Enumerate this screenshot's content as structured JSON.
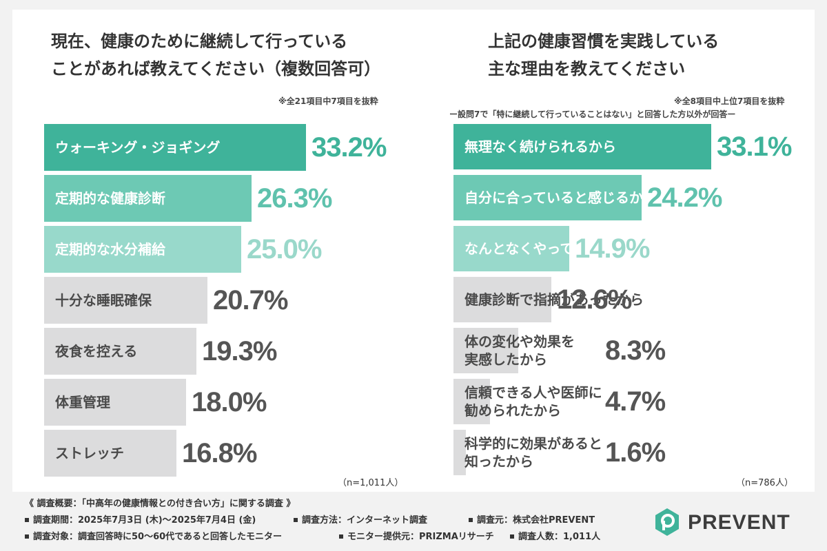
{
  "left_panel": {
    "title_line1": "現在、健康のために継続して行っている",
    "title_line2": "ことがあれば教えてください（複数回答可）",
    "note": "※全21項目中7項目を抜粋",
    "sample": "（n=1,011人）"
  },
  "right_panel": {
    "title_line1": "上記の健康習慣を実践している",
    "title_line2": "主な理由を教えてください",
    "note1": "※全8項目中上位7項目を抜粋",
    "note2": "ー設問7で「特に継続して行っていることはない」と回答した方以外が回答ー",
    "sample": "（n=786人）"
  },
  "footer": {
    "summary": "《 調査概要：「中高年の健康情報との付き合い方」に関する調査 》",
    "period": "調査期間：2025年7月3日 (木)〜2025年7月4日 (金)",
    "method": "調査方法：インターネット調査",
    "source": "調査元：株式会社PREVENT",
    "target": "調査対象：調査回答時に50〜60代であると回答したモニター",
    "monitor": "モニター提供元：PRIZMAリサーチ",
    "count": "調査人数：1,011人"
  },
  "logo": {
    "text": "PREVENT",
    "brand_color": "#3fb39a"
  },
  "colors": {
    "top1": "#3fb39a",
    "top2": "#6dc9b4",
    "top3": "#98d9cb",
    "rest": "#dcdcdd",
    "value_top1": "#3fb39a",
    "value_top2": "#5fc2ad",
    "value_top3": "#9ad8ca",
    "value_rest": "#555555"
  },
  "chart_data": [
    {
      "type": "bar",
      "orientation": "horizontal",
      "title": "現在、健康のために継続して行っていることがあれば教えてください（複数回答可）",
      "categories": [
        "ウォーキング・ジョギング",
        "定期的な健康診断",
        "定期的な水分補給",
        "十分な睡眠確保",
        "夜食を控える",
        "体重管理",
        "ストレッチ"
      ],
      "values": [
        33.2,
        26.3,
        25.0,
        20.7,
        19.3,
        18.0,
        16.8
      ],
      "value_labels": [
        "33.2%",
        "26.3%",
        "25.0%",
        "20.7%",
        "19.3%",
        "18.0%",
        "16.8%"
      ],
      "unit": "%"
    },
    {
      "type": "bar",
      "orientation": "horizontal",
      "title": "上記の健康習慣を実践している主な理由を教えてください",
      "categories": [
        "無理なく続けられるから",
        "自分に合っていると感じるから",
        "なんとなくやっている",
        "健康診断で指摘があったから",
        "体の変化や効果を実感したから",
        "信頼できる人や医師に勧められたから",
        "科学的に効果があると知ったから"
      ],
      "category_lines": [
        [
          "無理なく続けられるから"
        ],
        [
          "自分に合っていると感じるから"
        ],
        [
          "なんとなくやっている"
        ],
        [
          "健康診断で指摘があったから"
        ],
        [
          "体の変化や効果を",
          "実感したから"
        ],
        [
          "信頼できる人や医師に",
          "勧められたから"
        ],
        [
          "科学的に効果があると",
          "知ったから"
        ]
      ],
      "values": [
        33.1,
        24.2,
        14.9,
        12.6,
        8.3,
        4.7,
        1.6
      ],
      "value_labels": [
        "33.1%",
        "24.2%",
        "14.9%",
        "12.6%",
        "8.3%",
        "4.7%",
        "1.6%"
      ],
      "unit": "%"
    }
  ]
}
